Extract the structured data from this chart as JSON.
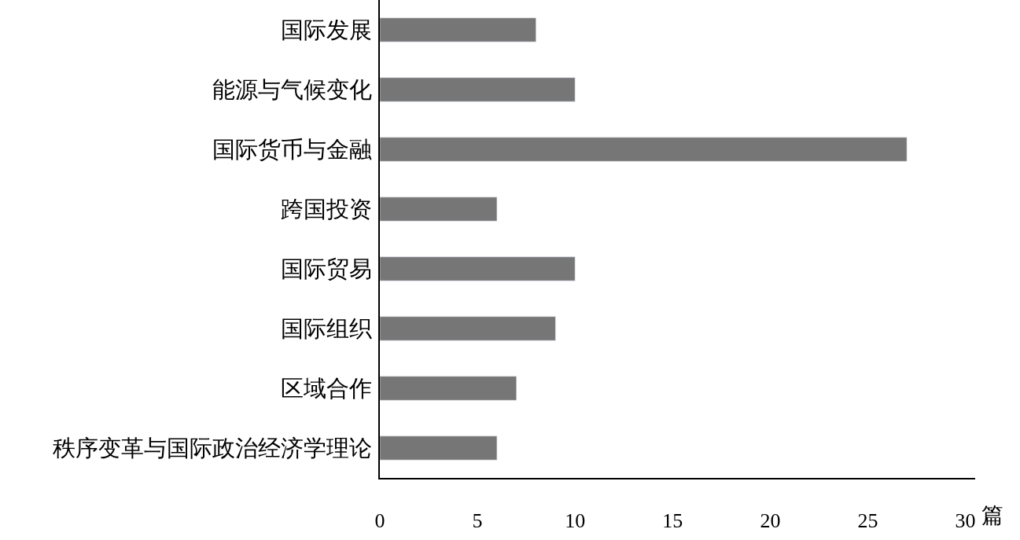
{
  "chart_data": {
    "type": "bar",
    "orientation": "horizontal",
    "xlabel": "篇",
    "categories": [
      "国际发展",
      "能源与气候变化",
      "国际货币与金融",
      "跨国投资",
      "国际贸易",
      "国际组织",
      "区域合作",
      "秩序变革与国际政治经济学理论"
    ],
    "values": [
      8,
      10,
      27,
      6,
      10,
      9,
      7,
      6
    ],
    "color": "#767676",
    "xlim": [
      0,
      30.5
    ],
    "xticks": [
      0,
      5,
      10,
      15,
      20,
      25,
      30
    ]
  }
}
